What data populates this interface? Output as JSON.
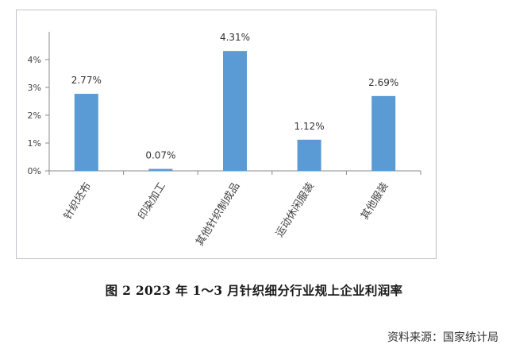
{
  "chart_data": {
    "type": "bar",
    "categories": [
      "针织坯布",
      "印染加工",
      "其他针织制成品",
      "运动休闲服装",
      "其他服装"
    ],
    "values": [
      2.77,
      0.07,
      4.31,
      1.12,
      2.69
    ],
    "data_labels": [
      "2.77%",
      "0.07%",
      "4.31%",
      "1.12%",
      "2.69%"
    ],
    "yticks": [
      "0%",
      "1%",
      "2%",
      "3%",
      "4%"
    ],
    "ylim": [
      0,
      4.5
    ],
    "bar_color": "#5b9bd5",
    "grid": false,
    "legend": "none"
  },
  "caption": "图 2   2023 年 1～3 月针织细分行业规上企业利润率",
  "source": "资料来源：国家统计局"
}
